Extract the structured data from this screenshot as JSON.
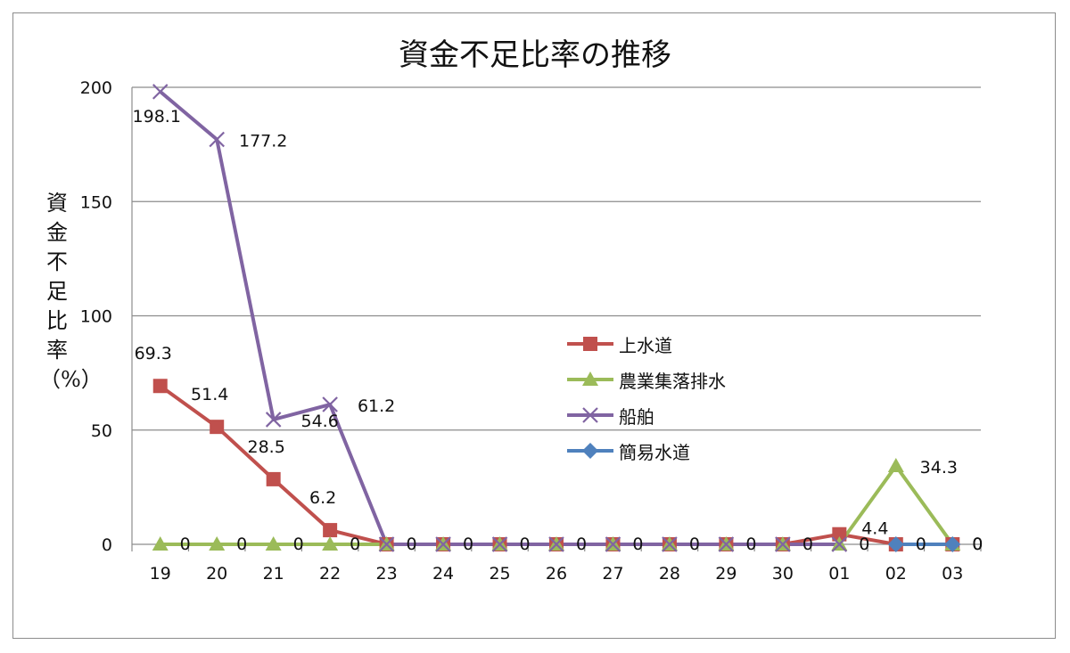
{
  "chart_data": {
    "type": "line",
    "title": "資金不足比率の推移",
    "ylabel": "資金不足比率（%）",
    "xlabel": "",
    "categories": [
      "19",
      "20",
      "21",
      "22",
      "23",
      "24",
      "25",
      "26",
      "27",
      "28",
      "29",
      "30",
      "01",
      "02",
      "03"
    ],
    "ylim": [
      0,
      200
    ],
    "yticks": [
      0,
      50,
      100,
      150,
      200
    ],
    "grid": true,
    "legend_position": "center-right",
    "series": [
      {
        "name": "上水道",
        "color": "#c0504d",
        "marker": "square",
        "values": [
          69.3,
          51.4,
          28.5,
          6.2,
          0,
          0,
          0,
          0,
          0,
          0,
          0,
          0,
          4.4,
          0,
          0
        ],
        "labels": [
          "69.3",
          "51.4",
          "28.5",
          "6.2",
          "",
          "",
          "",
          "",
          "",
          "",
          "",
          "",
          "4.4",
          "",
          ""
        ]
      },
      {
        "name": "農業集落排水",
        "color": "#9bbb59",
        "marker": "triangle",
        "values": [
          0,
          0,
          0,
          0,
          0,
          0,
          0,
          0,
          0,
          0,
          0,
          0,
          0,
          34.3,
          0
        ],
        "labels": [
          "0",
          "0",
          "0",
          "0",
          "0",
          "0",
          "0",
          "0",
          "0",
          "0",
          "0",
          "0",
          "0",
          "34.3",
          "0"
        ]
      },
      {
        "name": "船舶",
        "color": "#8064a2",
        "marker": "x",
        "values": [
          198.1,
          177.2,
          54.6,
          61.2,
          0,
          0,
          0,
          0,
          0,
          0,
          0,
          0,
          0,
          null,
          null
        ],
        "labels": [
          "198.1",
          "177.2",
          "54.6",
          "61.2",
          "",
          "",
          "",
          "",
          "",
          "",
          "",
          "",
          "",
          "",
          ""
        ]
      },
      {
        "name": "簡易水道",
        "color": "#4f81bd",
        "marker": "diamond",
        "values": [
          null,
          null,
          null,
          null,
          null,
          null,
          null,
          null,
          null,
          null,
          null,
          null,
          null,
          0,
          0
        ],
        "labels": [
          "",
          "",
          "",
          "",
          "",
          "",
          "",
          "",
          "",
          "",
          "",
          "",
          "",
          "0",
          "0"
        ]
      }
    ]
  }
}
